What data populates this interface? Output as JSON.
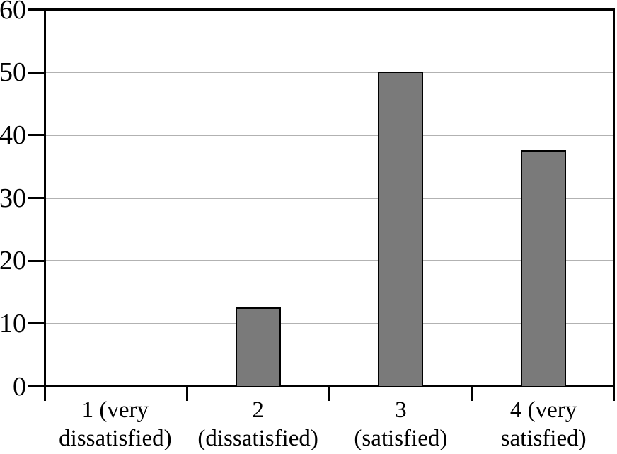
{
  "chart_data": {
    "type": "bar",
    "title": "",
    "xlabel": "",
    "ylabel": "",
    "categories": [
      "1 (very dissatisfied)",
      "2 (dissatisfied)",
      "3 (satisfied)",
      "4 (very satisfied)"
    ],
    "category_lines": [
      [
        "1 (very",
        "dissatisfied)"
      ],
      [
        "2",
        "(dissatisfied)"
      ],
      [
        "3",
        "(satisfied)"
      ],
      [
        "4 (very",
        "satisfied)"
      ]
    ],
    "values": [
      0,
      12.5,
      50,
      37.5
    ],
    "ylim": [
      0,
      60
    ],
    "yticks": [
      0,
      10,
      20,
      30,
      40,
      50,
      60
    ],
    "grid": true,
    "legend": "none",
    "colors": {
      "bar_fill": "#7a7a7a",
      "bar_border": "#000000",
      "gridline": "#b2b2b2",
      "axis": "#000000",
      "background": "#ffffff",
      "text": "#000000"
    }
  }
}
